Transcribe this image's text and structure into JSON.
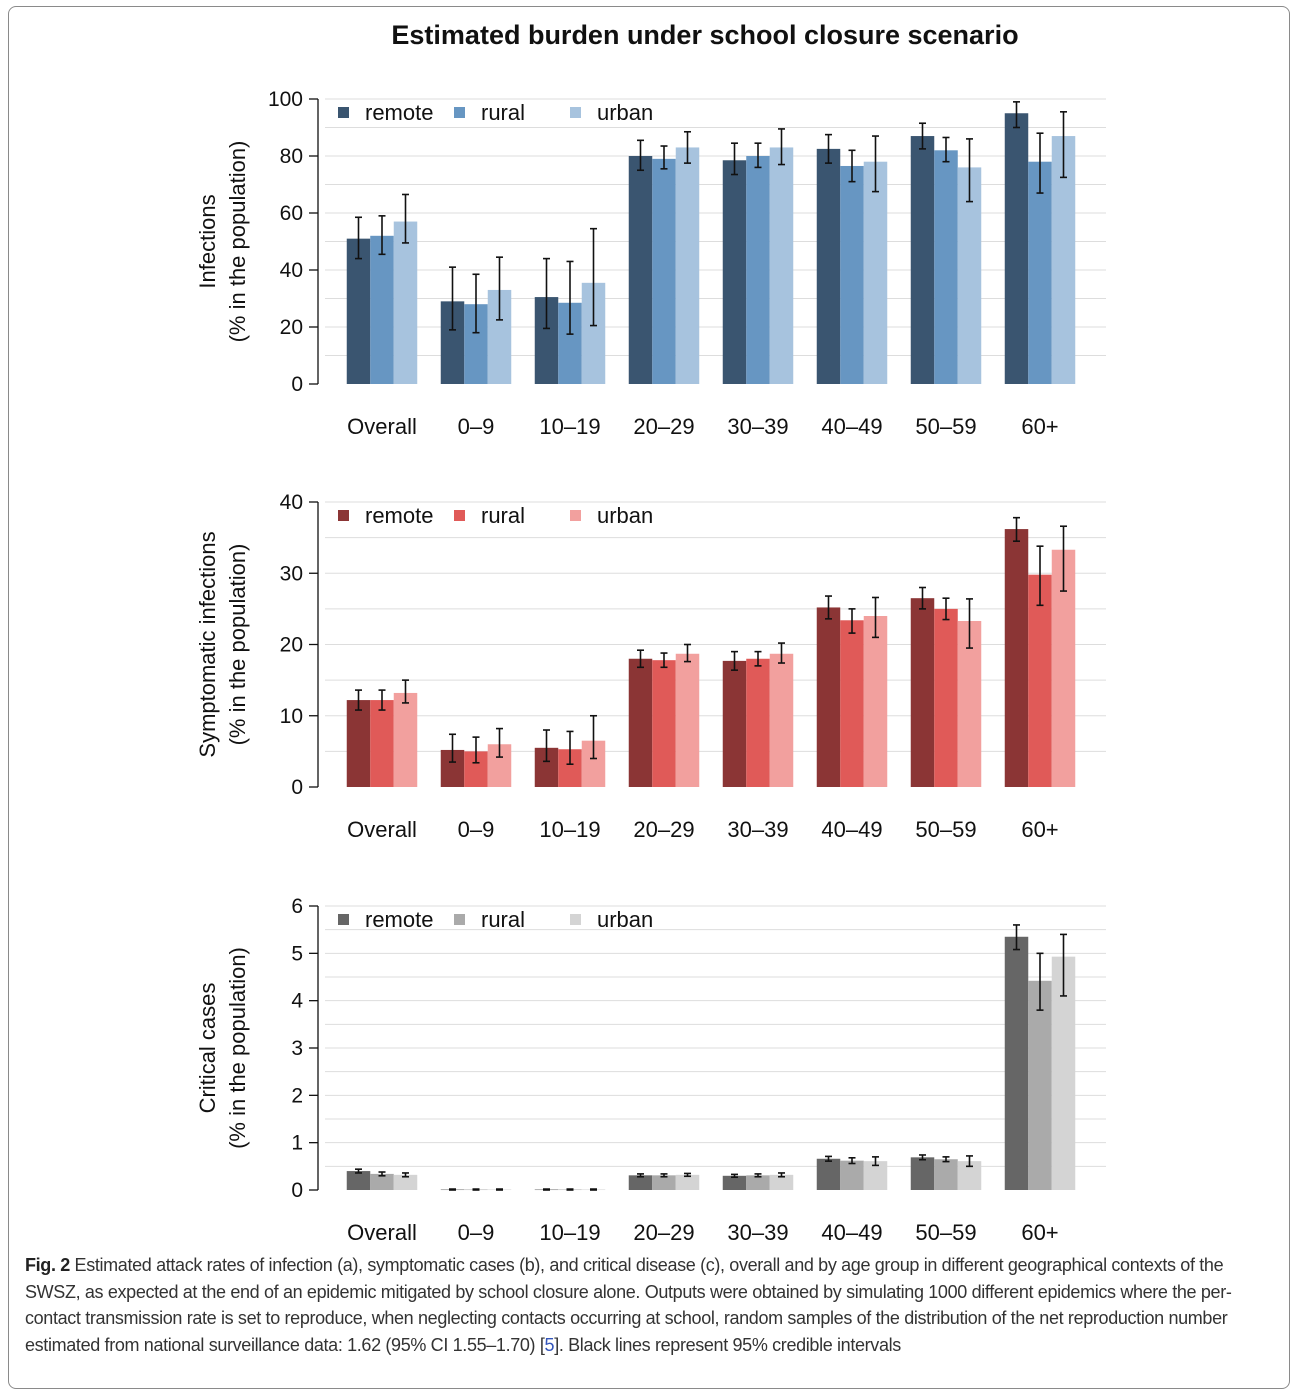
{
  "figure": {
    "title": "Estimated burden under school closure scenario",
    "categories": [
      "Overall",
      "0–9",
      "10–19",
      "20–29",
      "30–39",
      "40–49",
      "50–59",
      "60+"
    ],
    "series_names": [
      "remote",
      "rural",
      "urban"
    ]
  },
  "colors": {
    "panel_a": [
      "#3a5570",
      "#6796c2",
      "#a7c3de"
    ],
    "panel_b": [
      "#8b3535",
      "#e05a58",
      "#f2a09e"
    ],
    "panel_c": [
      "#666666",
      "#aaaaaa",
      "#d4d4d4"
    ],
    "error_bar": "#111111",
    "grid": "#dddddd",
    "caption_ref": "#3355bb"
  },
  "caption": {
    "label": "Fig. 2",
    "text_before_ref": " Estimated attack rates of infection (a), symptomatic cases (b), and critical disease (c), overall and by age group in different geographical contexts of the SWSZ, as expected at the end of an epidemic mitigated by school closure alone. Outputs were obtained by simulating 1000 different epidemics where the per-contact transmission rate is set to reproduce, when neglecting contacts occurring at school, random samples of the distribution of the net reproduction number estimated from national surveillance data: 1.62 (95% CI 1.55–1.70) [",
    "ref": "5",
    "text_after_ref": "]. Black lines represent 95% credible intervals"
  },
  "chart_data": [
    {
      "type": "bar",
      "panel": "a",
      "title": "Estimated burden under school closure scenario",
      "ylabel": [
        "Infections",
        "(% in the population)"
      ],
      "xlabel": "",
      "categories": [
        "Overall",
        "0–9",
        "10–19",
        "20–29",
        "30–39",
        "40–49",
        "50–59",
        "60+"
      ],
      "ylim": [
        0,
        100
      ],
      "yticks": [
        0,
        20,
        40,
        60,
        80,
        100
      ],
      "grid": true,
      "legend": "top-left",
      "series": [
        {
          "name": "remote",
          "values": [
            51,
            29,
            30.5,
            80,
            78.5,
            82.5,
            87,
            95
          ],
          "lower": [
            44,
            19,
            19.5,
            75,
            73.5,
            77.5,
            82.5,
            90
          ],
          "upper": [
            58.5,
            41,
            44,
            85.5,
            84.5,
            87.5,
            91.5,
            99
          ]
        },
        {
          "name": "rural",
          "values": [
            52,
            28,
            28.5,
            79,
            80,
            76.5,
            82,
            78
          ],
          "lower": [
            45.5,
            18,
            17.5,
            75.5,
            76,
            71,
            78,
            67
          ],
          "upper": [
            59,
            38.5,
            43,
            83.5,
            84.5,
            82,
            86.5,
            88
          ]
        },
        {
          "name": "urban",
          "values": [
            57,
            33,
            35.5,
            83,
            83,
            78,
            76,
            87
          ],
          "lower": [
            49.5,
            22.5,
            20.5,
            77.5,
            77,
            67.5,
            64,
            72.5
          ],
          "upper": [
            66.5,
            44.5,
            54.5,
            88.5,
            89.5,
            87,
            86,
            95.5
          ]
        }
      ]
    },
    {
      "type": "bar",
      "panel": "b",
      "title": "",
      "ylabel": [
        "Symptomatic infections",
        "(% in the population)"
      ],
      "xlabel": "",
      "categories": [
        "Overall",
        "0–9",
        "10–19",
        "20–29",
        "30–39",
        "40–49",
        "50–59",
        "60+"
      ],
      "ylim": [
        0,
        40
      ],
      "yticks": [
        0,
        10,
        20,
        30,
        40
      ],
      "grid": true,
      "legend": "top-left",
      "series": [
        {
          "name": "remote",
          "values": [
            12.2,
            5.2,
            5.5,
            18.0,
            17.7,
            25.2,
            26.5,
            36.2
          ],
          "lower": [
            10.8,
            3.5,
            3.6,
            16.8,
            16.4,
            23.6,
            25.0,
            34.5
          ],
          "upper": [
            13.6,
            7.4,
            8.0,
            19.2,
            19.0,
            26.8,
            28.0,
            37.8
          ]
        },
        {
          "name": "rural",
          "values": [
            12.2,
            5.0,
            5.3,
            17.8,
            18.0,
            23.4,
            25.0,
            29.8
          ],
          "lower": [
            10.8,
            3.4,
            3.2,
            16.8,
            17.0,
            21.6,
            23.5,
            25.5
          ],
          "upper": [
            13.6,
            7.0,
            7.8,
            18.8,
            19.0,
            25.0,
            26.5,
            33.8
          ]
        },
        {
          "name": "urban",
          "values": [
            13.2,
            6.0,
            6.5,
            18.7,
            18.7,
            24.0,
            23.3,
            33.3
          ],
          "lower": [
            11.8,
            4.2,
            4.0,
            17.6,
            17.4,
            21.0,
            19.5,
            27.5
          ],
          "upper": [
            15.0,
            8.2,
            10.0,
            20.0,
            20.2,
            26.6,
            26.4,
            36.6
          ]
        }
      ]
    },
    {
      "type": "bar",
      "panel": "c",
      "title": "",
      "ylabel": [
        "Critical cases",
        "(% in the population)"
      ],
      "xlabel": "",
      "categories": [
        "Overall",
        "0–9",
        "10–19",
        "20–29",
        "30–39",
        "40–49",
        "50–59",
        "60+"
      ],
      "ylim": [
        0,
        6
      ],
      "yticks": [
        0,
        1,
        2,
        3,
        4,
        5,
        6
      ],
      "grid": true,
      "legend": "top-left",
      "series": [
        {
          "name": "remote",
          "values": [
            0.4,
            0.01,
            0.01,
            0.31,
            0.3,
            0.66,
            0.69,
            5.35
          ],
          "lower": [
            0.36,
            0.0,
            0.0,
            0.28,
            0.27,
            0.61,
            0.64,
            5.08
          ],
          "upper": [
            0.44,
            0.02,
            0.02,
            0.34,
            0.33,
            0.71,
            0.74,
            5.6
          ]
        },
        {
          "name": "rural",
          "values": [
            0.34,
            0.01,
            0.01,
            0.31,
            0.31,
            0.62,
            0.65,
            4.42
          ],
          "lower": [
            0.3,
            0.0,
            0.0,
            0.28,
            0.28,
            0.56,
            0.6,
            3.8
          ],
          "upper": [
            0.38,
            0.02,
            0.02,
            0.34,
            0.34,
            0.68,
            0.7,
            5.0
          ]
        },
        {
          "name": "urban",
          "values": [
            0.32,
            0.01,
            0.01,
            0.32,
            0.32,
            0.61,
            0.61,
            4.93
          ],
          "lower": [
            0.28,
            0.0,
            0.0,
            0.29,
            0.28,
            0.52,
            0.5,
            4.1
          ],
          "upper": [
            0.36,
            0.02,
            0.02,
            0.35,
            0.36,
            0.7,
            0.72,
            5.4
          ]
        }
      ]
    }
  ]
}
